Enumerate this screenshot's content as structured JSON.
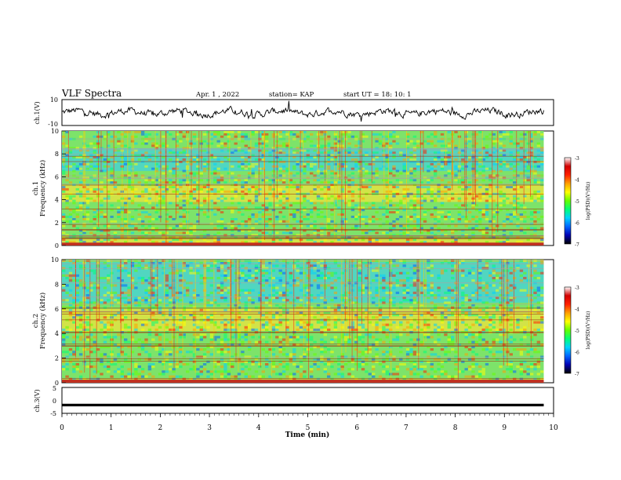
{
  "header": {
    "title": "VLF Spectra",
    "date": "Apr. 1  , 2022",
    "station": "station= KAP",
    "start": "start  UT  =   18: 10: 1"
  },
  "colors": {
    "frame": "#000000",
    "spectrum_bg": "#7de36a",
    "colorbar": [
      "#000000",
      "#0000b4",
      "#0064ff",
      "#00d2ff",
      "#00ff78",
      "#64ff00",
      "#ffff00",
      "#ffa000",
      "#ff2000",
      "#d20000",
      "#ffffff"
    ]
  },
  "chart_data": [
    {
      "type": "line",
      "panel": "ch1_waveform",
      "ylabel": "ch.1(V)",
      "ylim": [
        -10,
        10
      ],
      "yticks": [
        "10",
        "-10"
      ],
      "xlim": [
        0,
        10
      ],
      "note_values": "noisy waveform oscillating roughly between -3 and +3 V"
    },
    {
      "type": "heatmap",
      "panel": "ch1_spectrogram",
      "ylabel": "ch.1\nFrequency (kHz)",
      "ylabel_lines": [
        "ch.1",
        "Frequency  (kHz)"
      ],
      "ylim": [
        0,
        10
      ],
      "yticks": [
        "0",
        "2",
        "4",
        "6",
        "8",
        "10"
      ],
      "xlim": [
        0,
        9.8
      ],
      "colorbar": {
        "range": [
          -7,
          -3
        ],
        "ticks": [
          "-3",
          "-4",
          "-5",
          "-6",
          "-7"
        ],
        "label": "log(PSD)(V²/Hz)"
      },
      "bands": [
        {
          "f": [
            0,
            0.6
          ],
          "level": "high"
        },
        {
          "f": [
            3.8,
            5.3
          ],
          "level": "high"
        },
        {
          "f": [
            6.5,
            8.5
          ],
          "level": "low"
        }
      ]
    },
    {
      "type": "heatmap",
      "panel": "ch2_spectrogram",
      "ylabel": "ch.2\nFrequency (kHz)",
      "ylabel_lines": [
        "ch.2",
        "Frequency  (kHz)"
      ],
      "ylim": [
        0,
        10
      ],
      "yticks": [
        "0",
        "2",
        "4",
        "6",
        "8",
        "10"
      ],
      "xlim": [
        0,
        9.8
      ],
      "colorbar": {
        "range": [
          -7,
          -3
        ],
        "ticks": [
          "-3",
          "-4",
          "-5",
          "-6",
          "-7"
        ],
        "label": "log(PSD)(V²/Hz)"
      },
      "bands": [
        {
          "f": [
            0,
            0.3
          ],
          "level": "high"
        },
        {
          "f": [
            4.2,
            6.0
          ],
          "level": "high"
        },
        {
          "f": [
            6.5,
            9.8
          ],
          "level": "low"
        }
      ]
    },
    {
      "type": "line",
      "panel": "ch3_waveform",
      "ylabel": "ch.3(V)",
      "ylim": [
        -5,
        5
      ],
      "yticks": [
        "5",
        "0",
        "-5"
      ],
      "xlim": [
        0,
        10
      ],
      "xlabel": "Time  (min)",
      "xticks": [
        "0",
        "1",
        "2",
        "3",
        "4",
        "5",
        "6",
        "7",
        "8",
        "9",
        "10"
      ],
      "note_values": "near-constant level around -1.8 V with small ripple"
    }
  ]
}
